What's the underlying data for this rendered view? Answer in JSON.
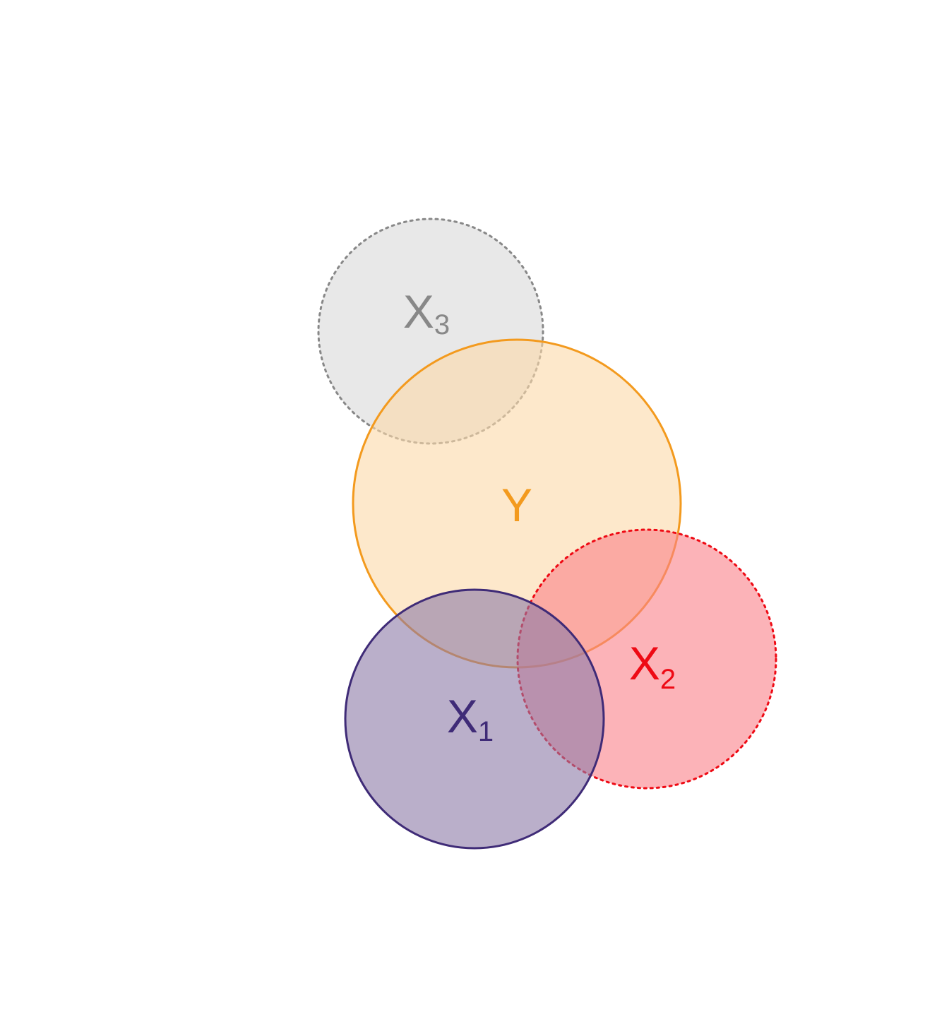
{
  "diagram": {
    "type": "venn",
    "sets": [
      {
        "key": "x3",
        "name": "X",
        "subscript": "3",
        "fill": "#d9d9d9",
        "stroke": "#888888",
        "text_color": "#888888",
        "line": "dotted"
      },
      {
        "key": "y",
        "name": "Y",
        "subscript": "",
        "fill": "#fbd9a8",
        "stroke": "#f39a1e",
        "text_color": "#f39a1e",
        "line": "solid"
      },
      {
        "key": "x2",
        "name": "X",
        "subscript": "2",
        "fill": "#fa8088",
        "stroke": "#ee0a14",
        "text_color": "#ee0a14",
        "line": "dotted"
      },
      {
        "key": "x1",
        "name": "X",
        "subscript": "1",
        "fill": "#8c7aa6",
        "stroke": "#3f2b77",
        "text_color": "#3f2b77",
        "line": "solid"
      }
    ]
  }
}
